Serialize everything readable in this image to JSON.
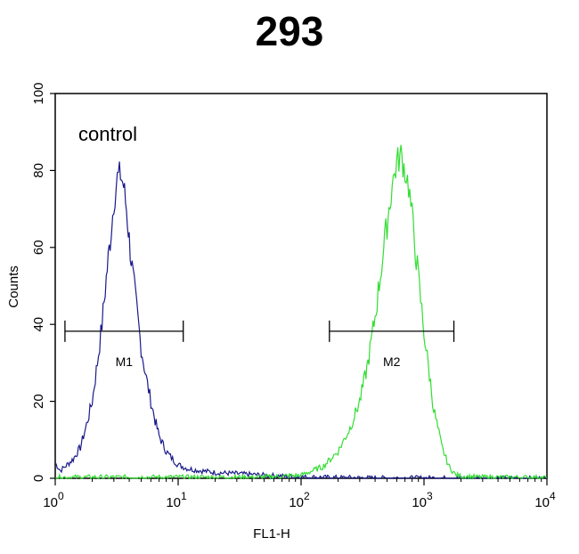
{
  "chart_data": {
    "type": "line",
    "title": "293",
    "xlabel": "FL1-H",
    "ylabel": "Counts",
    "xscale": "log",
    "xlim": [
      1,
      10000
    ],
    "ylim": [
      0,
      100
    ],
    "yticks": [
      "0",
      "20",
      "40",
      "60",
      "80",
      "100"
    ],
    "xticks": [
      {
        "base": "10",
        "exp": "0"
      },
      {
        "base": "10",
        "exp": "1"
      },
      {
        "base": "10",
        "exp": "2"
      },
      {
        "base": "10",
        "exp": "3"
      },
      {
        "base": "10",
        "exp": "4"
      }
    ],
    "annotation": "control",
    "colors": {
      "series1": "#1a1a8c",
      "series2": "#33dd33"
    },
    "series": [
      {
        "x": [
          1,
          1.1,
          1.2,
          1.4,
          1.6,
          1.8,
          2.0,
          2.2,
          2.4,
          2.6,
          2.8,
          3.0,
          3.2,
          3.4,
          3.6,
          3.8,
          4.0,
          4.3,
          4.6,
          5.0,
          5.5,
          6.0,
          6.5,
          7.0,
          8.0,
          9.0,
          10,
          12,
          15,
          20,
          30,
          50,
          80,
          120,
          200,
          400,
          1000,
          10000
        ],
        "y": [
          4,
          2,
          3,
          5,
          8,
          14,
          20,
          30,
          40,
          52,
          62,
          72,
          78,
          79,
          76,
          70,
          62,
          52,
          44,
          34,
          26,
          20,
          15,
          11,
          7,
          5,
          3.5,
          2.5,
          2,
          1.5,
          1.2,
          0.8,
          0.5,
          0.3,
          0.2,
          0.1,
          0.1,
          0
        ]
      },
      {
        "x": [
          1,
          50,
          100,
          150,
          200,
          250,
          300,
          350,
          400,
          450,
          500,
          550,
          600,
          650,
          700,
          750,
          800,
          900,
          1000,
          1200,
          1400,
          1600,
          1800,
          2000,
          3000,
          10000
        ],
        "y": [
          0.3,
          0.3,
          0.8,
          3,
          7,
          13,
          20,
          30,
          42,
          55,
          66,
          76,
          82,
          84,
          80,
          76,
          68,
          52,
          38,
          18,
          8,
          3,
          1,
          0.5,
          0.3,
          0.2
        ]
      }
    ],
    "gates": [
      {
        "label": "M1",
        "x_start": 1.2,
        "x_end": 11,
        "y": 41
      },
      {
        "label": "M2",
        "x_start": 170,
        "x_end": 1750,
        "y": 41
      }
    ]
  }
}
